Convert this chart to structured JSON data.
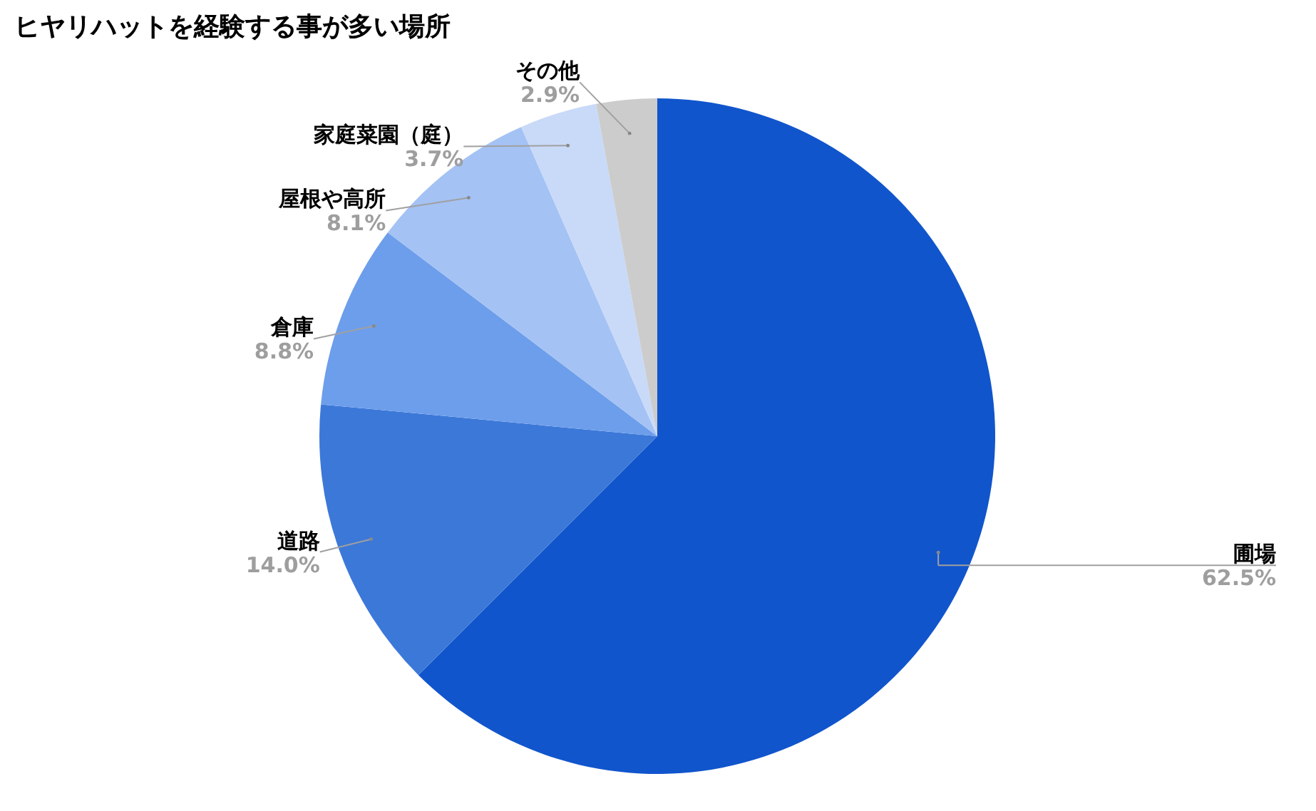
{
  "chart_data": {
    "type": "pie",
    "title": "ヒヤリハットを経験する事が多い場所",
    "categories": [
      "圃場",
      "道路",
      "倉庫",
      "屋根や高所",
      "家庭菜園（庭）",
      "その他"
    ],
    "values": [
      62.5,
      14.0,
      8.8,
      8.1,
      3.7,
      2.9
    ],
    "value_labels": [
      "62.5%",
      "14.0%",
      "8.8%",
      "8.1%",
      "3.7%",
      "2.9%"
    ],
    "colors": [
      "#1155cc",
      "#3c78d8",
      "#6d9eeb",
      "#a4c2f4",
      "#c9daf8",
      "#cccccc"
    ]
  }
}
